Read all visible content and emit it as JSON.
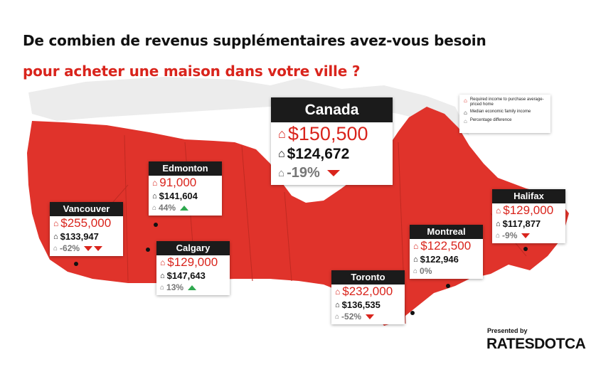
{
  "title": {
    "line1": "De combien de revenus supplémentaires avez-vous besoin",
    "line2": "pour acheter une maison dans votre ville ?"
  },
  "colors": {
    "accent": "#d9241c",
    "dark": "#1b1b1b",
    "up": "#2fa84f",
    "map": "#e0332b"
  },
  "legend": {
    "required": "Required income to purchase average-priced home",
    "median": "Median economic family income",
    "pct": "Percentage difference"
  },
  "cards": {
    "canada": {
      "name": "Canada",
      "required": "$150,500",
      "median": "$124,672",
      "pct": "-19%",
      "trend": "down"
    },
    "edmonton": {
      "name": "Edmonton",
      "required": "91,000",
      "median": "$141,604",
      "pct": "44%",
      "trend": "up"
    },
    "vancouver": {
      "name": "Vancouver",
      "required": "$255,000",
      "median": "$133,947",
      "pct": "-62%",
      "trend": "down2"
    },
    "calgary": {
      "name": "Calgary",
      "required": "$129,000",
      "median": "$147,643",
      "pct": "13%",
      "trend": "up"
    },
    "toronto": {
      "name": "Toronto",
      "required": "$232,000",
      "median": "$136,535",
      "pct": "-52%",
      "trend": "down"
    },
    "montreal": {
      "name": "Montreal",
      "required": "$122,500",
      "median": "$122,946",
      "pct": "0%",
      "trend": "none"
    },
    "halifax": {
      "name": "Halifax",
      "required": "$129,000",
      "median": "$117,877",
      "pct": "-9%",
      "trend": "down"
    }
  },
  "footer": {
    "presented": "Presented by",
    "brand": "RATESDOTCA"
  },
  "icons": {
    "house": "house-icon",
    "down": "arrow-down-icon",
    "up": "arrow-up-icon"
  }
}
